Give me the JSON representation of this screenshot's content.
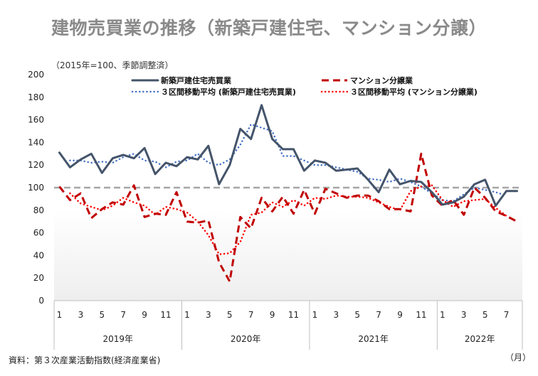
{
  "title": "建物売買業の推移（新築戸建住宅、マンション分譲）",
  "unit_note": "（2015年=100、季節調整済）",
  "source": "資料：第３次産業活動指数(経済産業省)",
  "month_unit": "（月）",
  "chart_data": {
    "type": "line",
    "title": "建物売買業の推移（新築戸建住宅、マンション分譲）",
    "ylim": [
      0,
      200
    ],
    "yticks": [
      0,
      20,
      40,
      60,
      80,
      100,
      120,
      140,
      160,
      180,
      200
    ],
    "x": [
      "2019-01",
      "2019-02",
      "2019-03",
      "2019-04",
      "2019-05",
      "2019-06",
      "2019-07",
      "2019-08",
      "2019-09",
      "2019-10",
      "2019-11",
      "2019-12",
      "2020-01",
      "2020-02",
      "2020-03",
      "2020-04",
      "2020-05",
      "2020-06",
      "2020-07",
      "2020-08",
      "2020-09",
      "2020-10",
      "2020-11",
      "2020-12",
      "2021-01",
      "2021-02",
      "2021-03",
      "2021-04",
      "2021-05",
      "2021-06",
      "2021-07",
      "2021-08",
      "2021-09",
      "2021-10",
      "2021-11",
      "2021-12",
      "2022-01",
      "2022-02",
      "2022-03",
      "2022-04",
      "2022-05",
      "2022-06",
      "2022-07",
      "2022-08"
    ],
    "month_labels": [
      "1",
      "",
      "3",
      "",
      "5",
      "",
      "7",
      "",
      "9",
      "",
      "11",
      "",
      "1",
      "",
      "3",
      "",
      "5",
      "",
      "7",
      "",
      "9",
      "",
      "11",
      "",
      "1",
      "",
      "3",
      "",
      "5",
      "",
      "7",
      "",
      "9",
      "",
      "11",
      "",
      "1",
      "",
      "3",
      "",
      "5",
      "",
      "7",
      ""
    ],
    "year_labels": [
      "2019年",
      "2020年",
      "2021年",
      "2022年"
    ],
    "reference_line": 100,
    "grid": false,
    "legend_position": "top",
    "series": [
      {
        "name": "新築戸建住宅売買業",
        "color": "#44546a",
        "style": "solid",
        "values": [
          131,
          118,
          125,
          130,
          113,
          126,
          129,
          126,
          135,
          112,
          122,
          119,
          127,
          125,
          137,
          103,
          120,
          152,
          143,
          173,
          143,
          134,
          134,
          115,
          124,
          122,
          115,
          116,
          117,
          107,
          96,
          116,
          103,
          106,
          105,
          96,
          85,
          87,
          92,
          103,
          107,
          84,
          97,
          97
        ]
      },
      {
        "name": "マンション分譲業",
        "color": "#c00000",
        "style": "dashed",
        "values": [
          101,
          89,
          95,
          73,
          81,
          87,
          85,
          102,
          74,
          77,
          76,
          96,
          70,
          69,
          71,
          34,
          17,
          74,
          64,
          91,
          79,
          92,
          77,
          98,
          77,
          99,
          95,
          91,
          93,
          93,
          88,
          81,
          81,
          79,
          130,
          93,
          84,
          89,
          76,
          100,
          91,
          79,
          75,
          70
        ]
      },
      {
        "name": "３区間移動平均 (新築戸建住宅売買業)",
        "color": "#4472c4",
        "style": "dotted",
        "values": [
          null,
          124,
          124,
          122,
          123,
          122,
          127,
          130,
          124,
          123,
          118,
          123,
          124,
          130,
          122,
          120,
          125,
          138,
          156,
          153,
          150,
          128,
          128,
          124,
          120,
          120,
          118,
          116,
          114,
          108,
          107,
          105,
          108,
          105,
          101,
          95,
          89,
          88,
          94,
          100,
          98,
          96,
          93,
          null
        ]
      },
      {
        "name": "３区間移動平均 (マンション分譲業)",
        "color": "#ff0000",
        "style": "dotted",
        "values": [
          null,
          95,
          86,
          83,
          80,
          84,
          91,
          87,
          84,
          76,
          83,
          81,
          78,
          70,
          58,
          41,
          42,
          52,
          76,
          78,
          87,
          83,
          89,
          84,
          91,
          90,
          93,
          92,
          92,
          91,
          87,
          83,
          80,
          97,
          101,
          102,
          89,
          83,
          88,
          89,
          90,
          82,
          75,
          null
        ]
      }
    ]
  }
}
